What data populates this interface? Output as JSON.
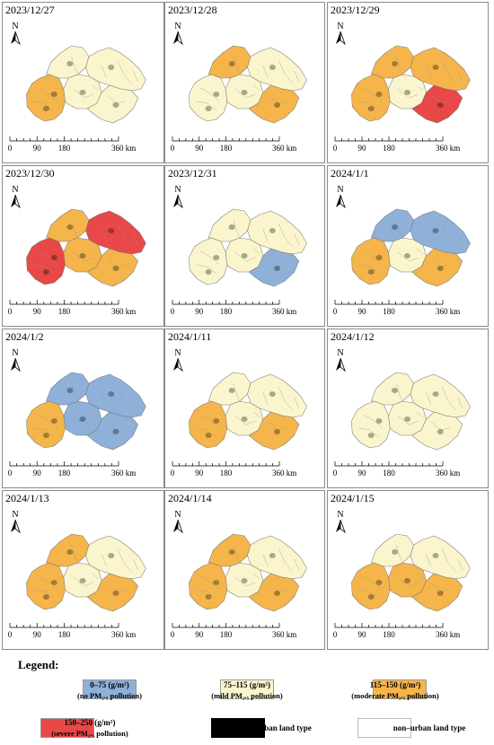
{
  "panels": [
    {
      "date": "2023/12/27",
      "regions": {
        "west": "moderate",
        "north": "mild",
        "center": "mild",
        "east": "mild",
        "south": "mild"
      }
    },
    {
      "date": "2023/12/28",
      "regions": {
        "west": "mild",
        "north": "moderate",
        "center": "mild",
        "east": "mild",
        "south": "moderate"
      }
    },
    {
      "date": "2023/12/29",
      "regions": {
        "west": "moderate",
        "north": "moderate",
        "center": "mild",
        "east": "moderate",
        "south": "severe"
      }
    },
    {
      "date": "2023/12/30",
      "regions": {
        "west": "severe",
        "north": "moderate",
        "center": "moderate",
        "east": "severe",
        "south": "moderate"
      }
    },
    {
      "date": "2023/12/31",
      "regions": {
        "west": "mild",
        "north": "mild",
        "center": "mild",
        "east": "mild",
        "south": "none"
      }
    },
    {
      "date": "2024/1/1",
      "regions": {
        "west": "moderate",
        "north": "none",
        "center": "mild",
        "east": "none",
        "south": "moderate"
      }
    },
    {
      "date": "2024/1/2",
      "regions": {
        "west": "moderate",
        "north": "none",
        "center": "none",
        "east": "none",
        "south": "none"
      }
    },
    {
      "date": "2024/1/11",
      "regions": {
        "west": "moderate",
        "north": "mild",
        "center": "mild",
        "east": "mild",
        "south": "moderate"
      }
    },
    {
      "date": "2024/1/12",
      "regions": {
        "west": "mild",
        "north": "mild",
        "center": "mild",
        "east": "mild",
        "south": "mild"
      }
    },
    {
      "date": "2024/1/13",
      "regions": {
        "west": "moderate",
        "north": "moderate",
        "center": "mild",
        "east": "mild",
        "south": "moderate"
      }
    },
    {
      "date": "2024/1/14",
      "regions": {
        "west": "moderate",
        "north": "moderate",
        "center": "mild",
        "east": "mild",
        "south": "moderate"
      }
    },
    {
      "date": "2024/1/15",
      "regions": {
        "west": "moderate",
        "north": "mild",
        "center": "moderate",
        "east": "mild",
        "south": "moderate"
      }
    }
  ],
  "north_arrow_label": "N",
  "scale_bar": {
    "ticks": [
      "0",
      "90",
      "180",
      "360 km"
    ]
  },
  "legend": {
    "title": "Legend:",
    "items": [
      {
        "key": "none",
        "line1": "0–75 (g/m²)",
        "line2": "(no PM₂.₅ pollution)",
        "color": "#8fb0d8"
      },
      {
        "key": "mild",
        "line1": "75–115 (g/m²)",
        "line2": "(mild PM₂.₅ pollution)",
        "color": "#faf5cc"
      },
      {
        "key": "moderate",
        "line1": "115–150 (g/m²)",
        "line2": "(moderate PM₂.₅ pollution)",
        "color": "#f5b54a"
      },
      {
        "key": "severe",
        "line1": "150–250 (g/m²)",
        "line2": "(severe PM₂.₅ pollution)",
        "color": "#e84848"
      },
      {
        "key": "urban",
        "line1": "urban land type",
        "line2": "",
        "color": "#000000"
      },
      {
        "key": "nonurban",
        "line1": "non–urban land type",
        "line2": "",
        "color": "#ffffff"
      }
    ]
  }
}
